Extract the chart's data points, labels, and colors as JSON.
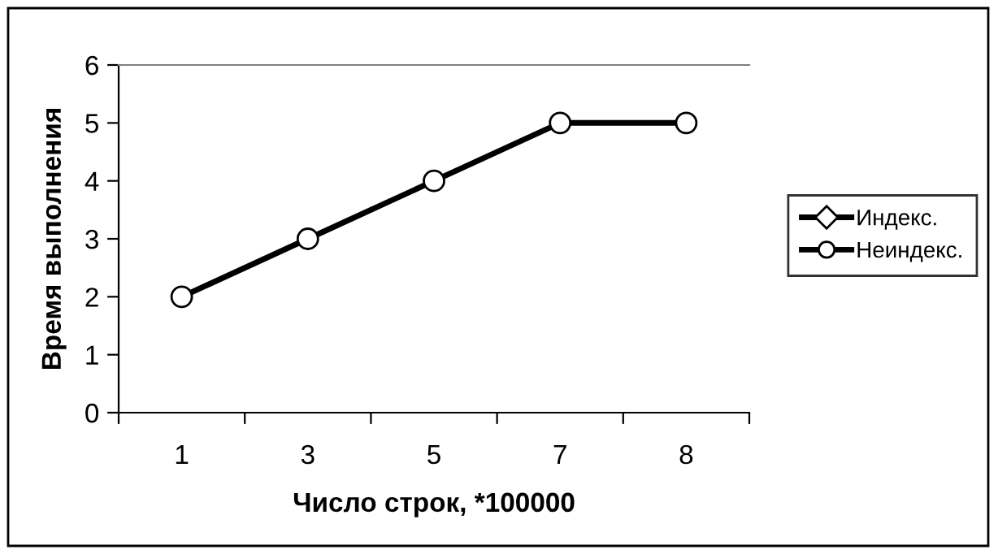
{
  "chart_data": {
    "type": "line",
    "xlabel": "Число строк, *100000",
    "ylabel": "Время выполнения",
    "categories": [
      "1",
      "3",
      "5",
      "7",
      "8"
    ],
    "series": [
      {
        "name": "Индекс.",
        "color": "#000000",
        "marker": "diamond",
        "values": [
          null,
          null,
          null,
          null,
          null
        ]
      },
      {
        "name": "Неиндекс.",
        "color": "#000000",
        "marker": "circle",
        "values": [
          2,
          3,
          4,
          5,
          5
        ]
      }
    ],
    "ylim": [
      0,
      6
    ],
    "yticks": [
      0,
      1,
      2,
      3,
      4,
      5,
      6
    ],
    "grid": false,
    "legend": "right",
    "line_style": "solid"
  }
}
